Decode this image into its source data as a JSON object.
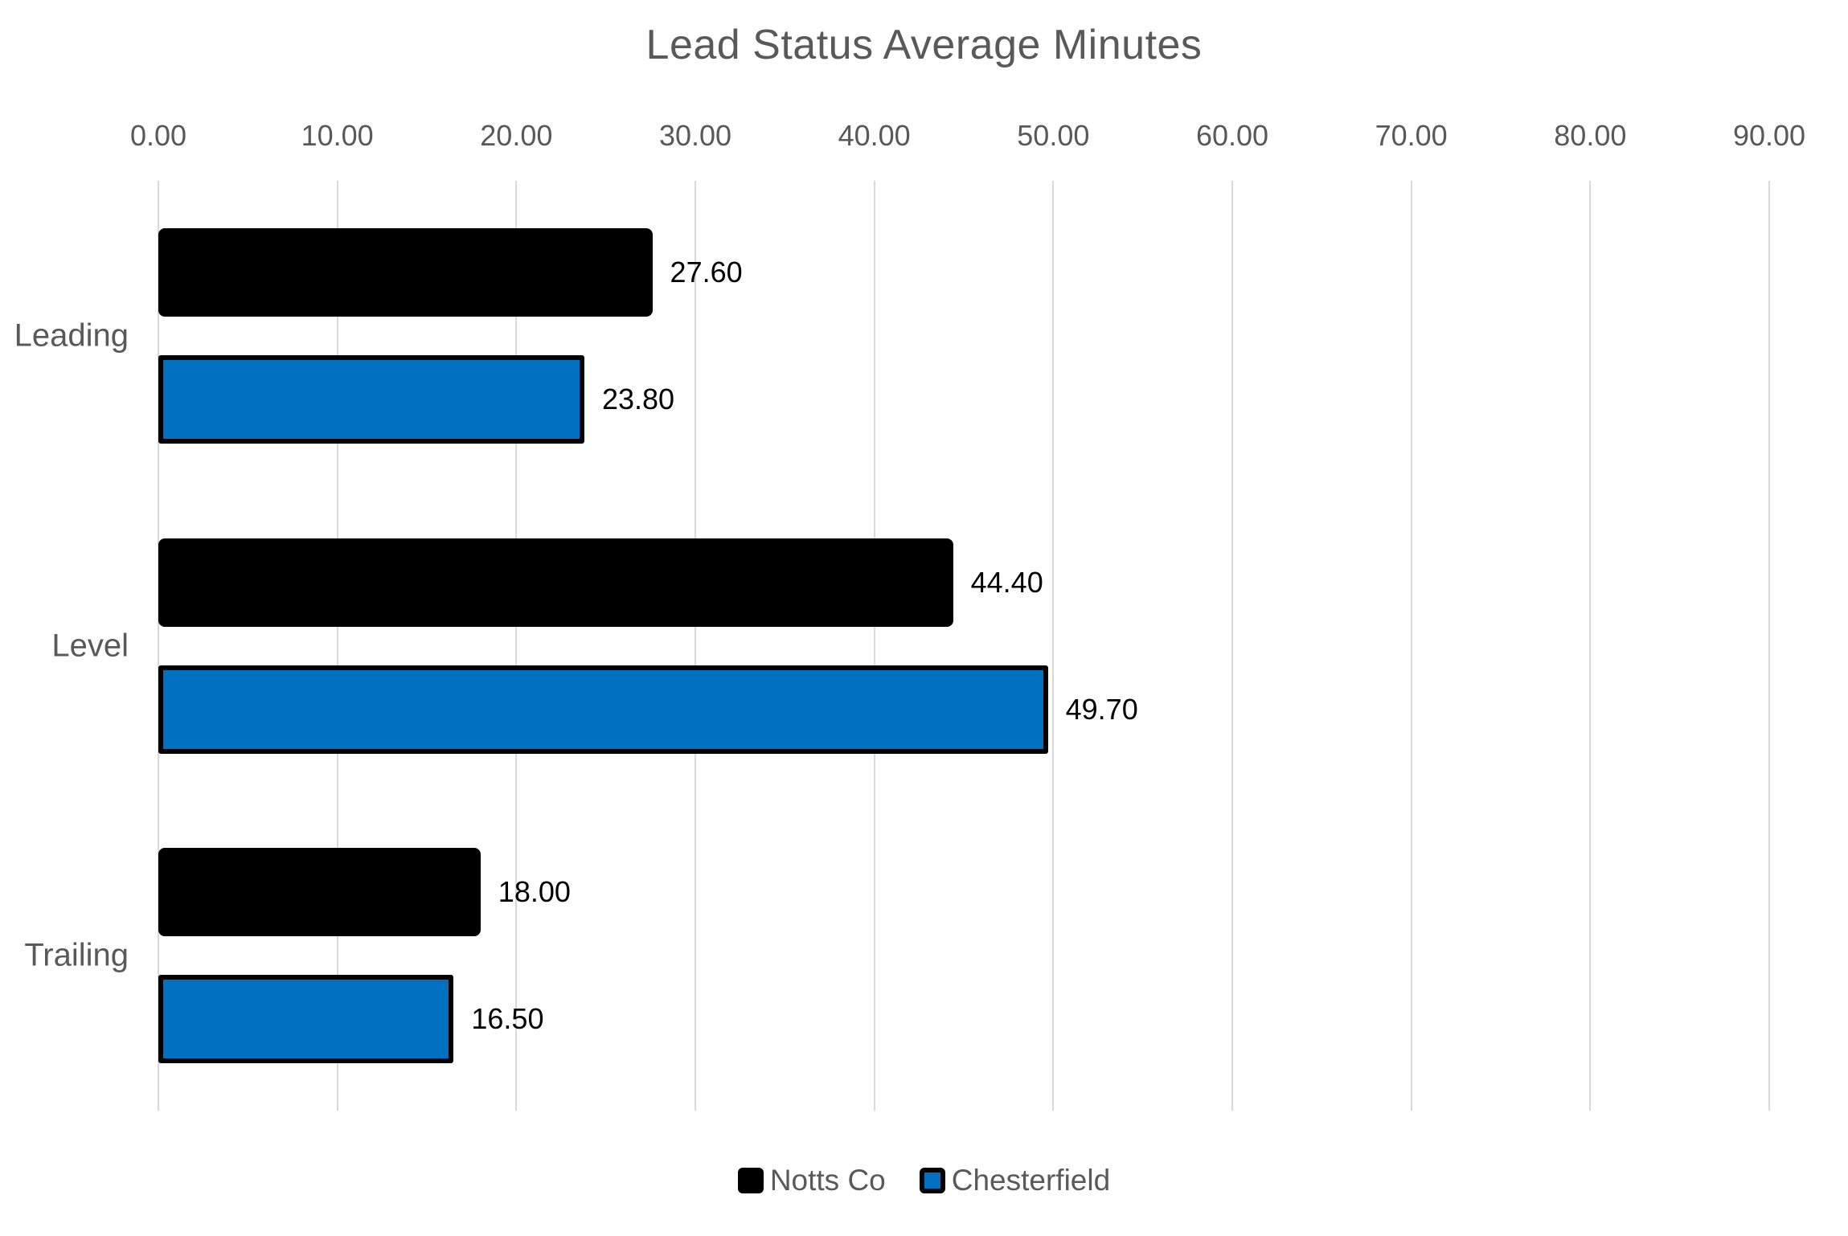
{
  "title": "Lead Status Average Minutes",
  "chart_data": {
    "type": "bar",
    "orientation": "horizontal",
    "title": "Lead Status Average Minutes",
    "categories": [
      "Leading",
      "Level",
      "Trailing"
    ],
    "series": [
      {
        "name": "Notts Co",
        "color": "#000000",
        "border_color": "#000000",
        "values": [
          27.6,
          44.4,
          18.0
        ],
        "data_labels": [
          "27.60",
          "44.40",
          "18.00"
        ]
      },
      {
        "name": "Chesterfield",
        "color": "#0071C1",
        "border_color": "#000000",
        "values": [
          23.8,
          49.7,
          16.5
        ],
        "data_labels": [
          "23.80",
          "49.70",
          "16.50"
        ]
      }
    ],
    "x_axis": {
      "min": 0,
      "max": 90,
      "tick_interval": 10,
      "tick_labels": [
        "0.00",
        "10.00",
        "20.00",
        "30.00",
        "40.00",
        "50.00",
        "60.00",
        "70.00",
        "80.00",
        "90.00"
      ],
      "labels_position": "top"
    },
    "grid": true,
    "legend": {
      "position": "bottom",
      "entries": [
        {
          "label": "Notts Co",
          "color": "#000000"
        },
        {
          "label": "Chesterfield",
          "color": "#0071C1"
        }
      ]
    },
    "styles": {
      "grid_color": "#D9D9D9",
      "axis_text_color": "#595959",
      "category_text_color": "#595959",
      "title_color": "#595959",
      "data_label_color": "#000000",
      "legend_text_color": "#595959"
    }
  }
}
